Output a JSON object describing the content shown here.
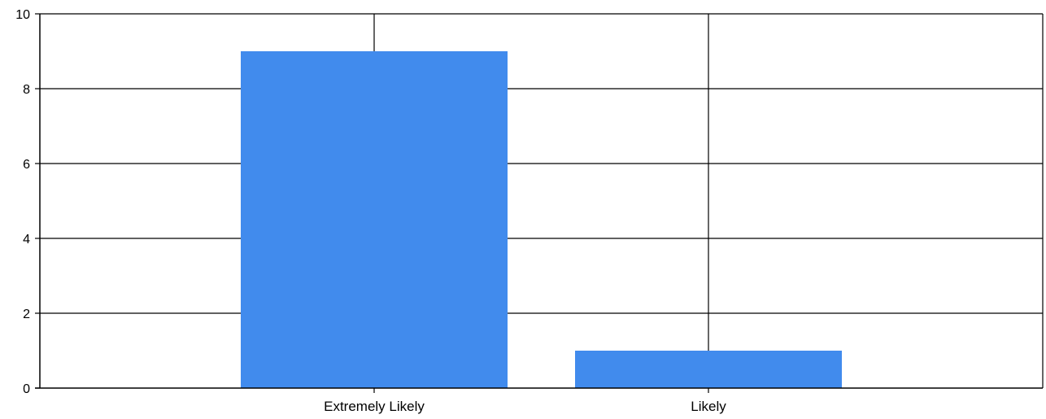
{
  "chart_data": {
    "type": "bar",
    "categories": [
      "Extremely Likely",
      "Likely"
    ],
    "values": [
      9,
      1
    ],
    "title": "",
    "xlabel": "",
    "ylabel": "",
    "ylim": [
      0,
      10
    ],
    "yticks": [
      0,
      2,
      4,
      6,
      8,
      10
    ],
    "grid": true,
    "legend": "none",
    "bar_color": "#418BED",
    "axis_color": "#000000"
  }
}
